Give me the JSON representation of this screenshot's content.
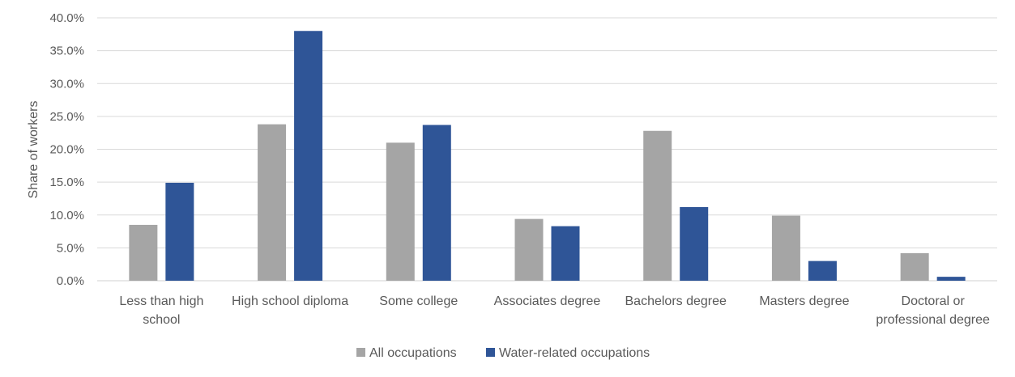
{
  "chart_data": {
    "type": "bar",
    "title": "",
    "xlabel": "",
    "ylabel": "Share of workers",
    "ylim": [
      0,
      40
    ],
    "ytick_step": 5,
    "ytick_labels": [
      "0.0%",
      "5.0%",
      "10.0%",
      "15.0%",
      "20.0%",
      "25.0%",
      "30.0%",
      "35.0%",
      "40.0%"
    ],
    "grid": true,
    "legend_position": "bottom",
    "categories": [
      [
        "Less than high",
        "school"
      ],
      [
        "High school diploma"
      ],
      [
        "Some college"
      ],
      [
        "Associates degree"
      ],
      [
        "Bachelors degree"
      ],
      [
        "Masters degree"
      ],
      [
        "Doctoral or",
        "professional degree"
      ]
    ],
    "series": [
      {
        "name": "All occupations",
        "color": "#a5a5a5",
        "values": [
          8.5,
          23.8,
          21.0,
          9.4,
          22.8,
          9.9,
          4.2
        ]
      },
      {
        "name": "Water-related occupations",
        "color": "#2f5597",
        "values": [
          14.9,
          38.0,
          23.7,
          8.3,
          11.2,
          3.0,
          0.6
        ]
      }
    ]
  }
}
